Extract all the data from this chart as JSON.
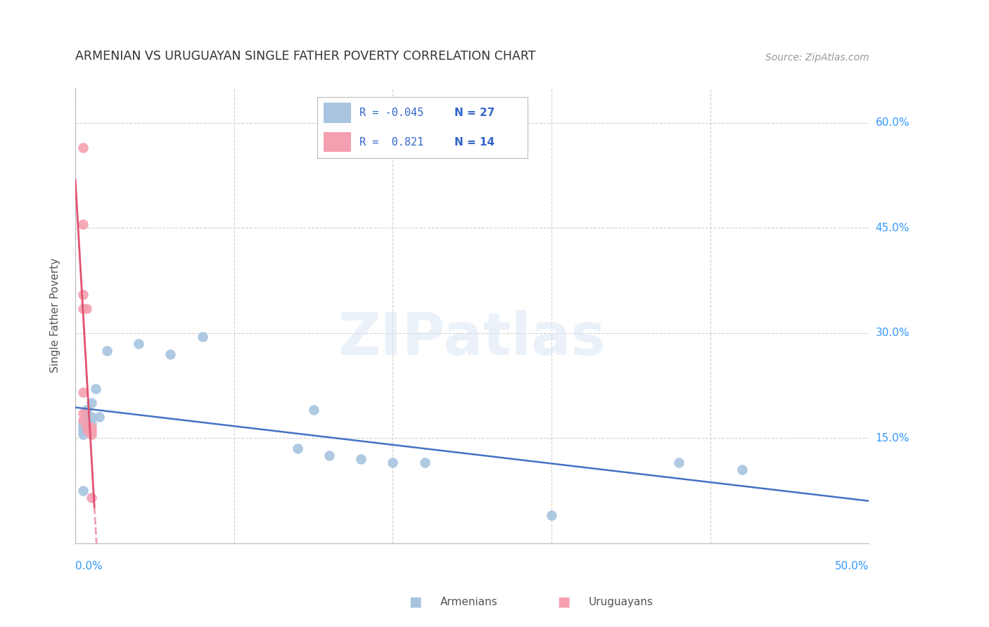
{
  "title": "ARMENIAN VS URUGUAYAN SINGLE FATHER POVERTY CORRELATION CHART",
  "source": "Source: ZipAtlas.com",
  "ylabel": "Single Father Poverty",
  "xlim": [
    0.0,
    0.5
  ],
  "ylim": [
    0.0,
    0.65
  ],
  "xtick_positions": [
    0.0,
    0.1,
    0.2,
    0.3,
    0.4,
    0.5
  ],
  "ytick_positions": [
    0.0,
    0.15,
    0.3,
    0.45,
    0.6
  ],
  "armenian_x": [
    0.005,
    0.005,
    0.005,
    0.005,
    0.005,
    0.007,
    0.007,
    0.008,
    0.008,
    0.01,
    0.01,
    0.01,
    0.013,
    0.015,
    0.02,
    0.04,
    0.06,
    0.08,
    0.14,
    0.16,
    0.18,
    0.2,
    0.22,
    0.15,
    0.3,
    0.38,
    0.42
  ],
  "armenian_y": [
    0.17,
    0.165,
    0.16,
    0.155,
    0.075,
    0.19,
    0.185,
    0.175,
    0.165,
    0.2,
    0.18,
    0.17,
    0.22,
    0.18,
    0.275,
    0.285,
    0.27,
    0.295,
    0.135,
    0.125,
    0.12,
    0.115,
    0.115,
    0.19,
    0.04,
    0.115,
    0.105
  ],
  "uruguayan_x": [
    0.005,
    0.005,
    0.005,
    0.005,
    0.005,
    0.005,
    0.005,
    0.007,
    0.007,
    0.008,
    0.01,
    0.01,
    0.01,
    0.01
  ],
  "uruguayan_y": [
    0.565,
    0.455,
    0.355,
    0.335,
    0.215,
    0.185,
    0.175,
    0.335,
    0.165,
    0.16,
    0.155,
    0.16,
    0.165,
    0.065
  ],
  "R_armenian": -0.045,
  "N_armenian": 27,
  "R_uruguayan": 0.821,
  "N_uruguayan": 14,
  "armenian_color": "#a8c4e0",
  "uruguayan_color": "#f4a0b0",
  "armenian_line_color": "#4472c4",
  "uruguayan_line_color": "#e05070",
  "watermark_text": "ZIPatlas",
  "background_color": "#ffffff",
  "grid_color": "#d0d0d0",
  "legend_R1_label": "R = -0.045",
  "legend_N1_label": "N = 27",
  "legend_R2_label": "R =  0.821",
  "legend_N2_label": "N = 14",
  "bottom_legend_armenians": "Armenians",
  "bottom_legend_uruguayans": "Uruguayans"
}
